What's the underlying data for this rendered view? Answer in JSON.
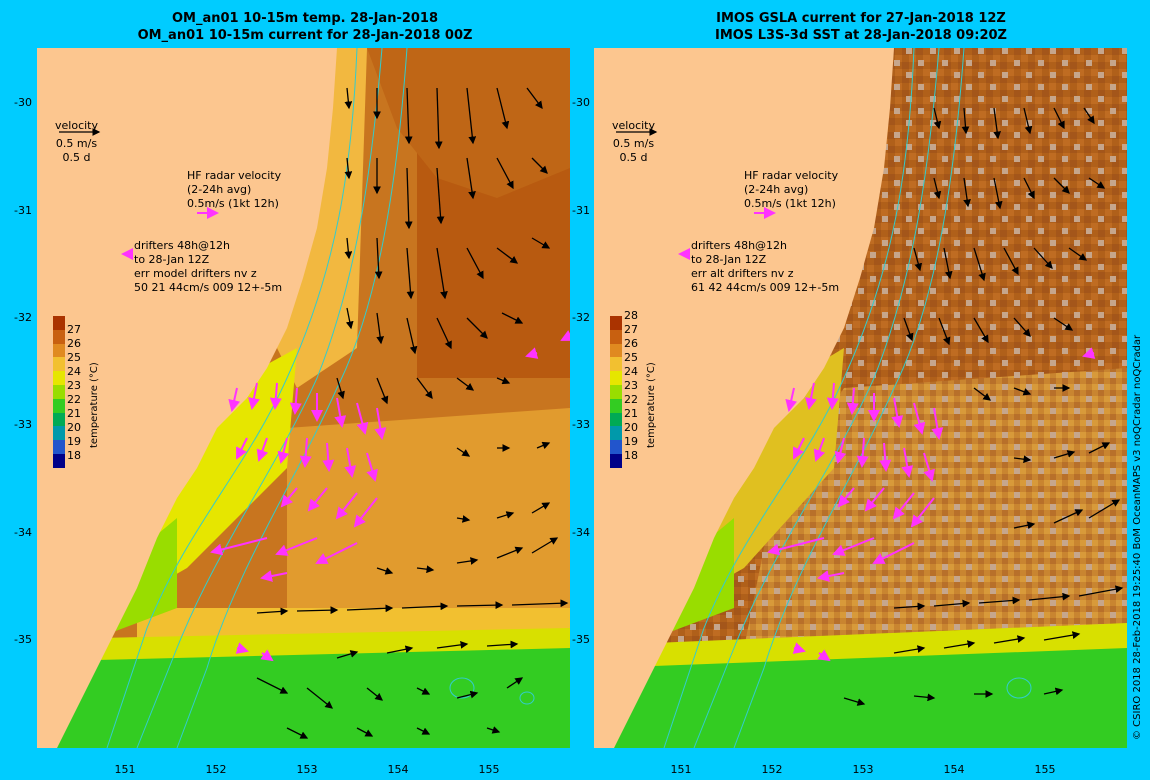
{
  "left": {
    "title1": "OM_an01 10-15m temp. 28-Jan-2018",
    "title2": "OM_an01 10-15m current for 28-Jan-2018 00Z",
    "velocity_label": "velocity",
    "velocity_scale": "0.5 m/s",
    "velocity_time": "0.5 d",
    "hf_radar_line1": "HF radar velocity",
    "hf_radar_line2": "(2-24h avg)",
    "hf_radar_line3": "0.5m/s (1kt 12h)",
    "drifters_line1": "drifters 48h@12h",
    "drifters_line2": "to 28-Jan 12Z",
    "drifters_line3": "err model drifters nv z",
    "drifters_line4": "50 21 44cm/s 009 12+-5m",
    "colorbar_labels": [
      "27",
      "26",
      "25",
      "24",
      "23",
      "22",
      "21",
      "20",
      "19",
      "18"
    ],
    "colorbar_title": "temperature (°C)"
  },
  "right": {
    "title1": "IMOS GSLA current for 27-Jan-2018 12Z",
    "title2": "IMOS L3S-3d SST at 28-Jan-2018 09:20Z",
    "velocity_label": "velocity",
    "velocity_scale": "0.5 m/s",
    "velocity_time": "0.5 d",
    "hf_radar_line1": "HF radar velocity",
    "hf_radar_line2": "(2-24h avg)",
    "hf_radar_line3": "0.5m/s (1kt 12h)",
    "drifters_line1": "drifters 48h@12h",
    "drifters_line2": "to 28-Jan 12Z",
    "drifters_line3": "err alt drifters nv z",
    "drifters_line4": "61 42 44cm/s 009 12+-5m",
    "colorbar_labels": [
      "28",
      "27",
      "26",
      "25",
      "24",
      "23",
      "22",
      "21",
      "20",
      "19",
      "18"
    ],
    "colorbar_title": "temperature (°C)"
  },
  "lat_labels": [
    "-30",
    "-31",
    "-32",
    "-33",
    "-34",
    "-35"
  ],
  "lon_labels": [
    "151",
    "152",
    "153",
    "154",
    "155"
  ],
  "credit": "© CSIRO 2018   28-Feb-2018 19:25:40 BoM OceanMAPS v3 noQCradar noQCradar",
  "colors": {
    "background": "#00ccff",
    "land": "#fcc68f",
    "warm": "#c8751f",
    "hot": "#b85a10",
    "mid": "#e19b2e",
    "cool": "#33cc22",
    "yellow": "#e6e600",
    "current_arrow": "#000000",
    "hf_radar_arrow": "#ff33ff",
    "isobath": "#33cccc",
    "cloud": "#c6a68c"
  }
}
